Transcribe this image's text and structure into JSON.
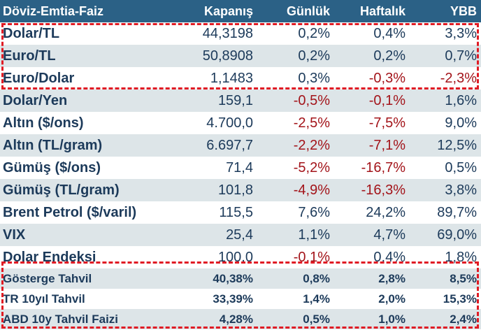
{
  "header": {
    "name": "Döviz-Emtia-Faiz",
    "kapanis": "Kapanış",
    "gunluk": "Günlük",
    "haftalik": "Haftalık",
    "ybb": "YBB"
  },
  "rows": [
    {
      "name": "Dolar/TL",
      "kapanis": "44,3198",
      "gunluk": "0,2%",
      "haftalik": "0,4%",
      "ybb": "3,3%"
    },
    {
      "name": "Euro/TL",
      "kapanis": "50,8908",
      "gunluk": "0,2%",
      "haftalik": "0,2%",
      "ybb": "0,7%"
    },
    {
      "name": "Euro/Dolar",
      "kapanis": "1,1483",
      "gunluk": "0,3%",
      "haftalik": "-0,3%",
      "ybb": "-2,3%"
    },
    {
      "name": "Dolar/Yen",
      "kapanis": "159,1",
      "gunluk": "-0,5%",
      "haftalik": "-0,1%",
      "ybb": "1,6%"
    },
    {
      "name": "Altın ($/ons)",
      "kapanis": "4.700,0",
      "gunluk": "-2,5%",
      "haftalik": "-7,5%",
      "ybb": "9,0%"
    },
    {
      "name": "Altın (TL/gram)",
      "kapanis": "6.697,7",
      "gunluk": "-2,2%",
      "haftalik": "-7,1%",
      "ybb": "12,5%"
    },
    {
      "name": "Gümüş ($/ons)",
      "kapanis": "71,4",
      "gunluk": "-5,2%",
      "haftalik": "-16,7%",
      "ybb": "0,5%"
    },
    {
      "name": "Gümüş (TL/gram)",
      "kapanis": "101,8",
      "gunluk": "-4,9%",
      "haftalik": "-16,3%",
      "ybb": "3,8%"
    },
    {
      "name": "Brent Petrol ($/varil)",
      "kapanis": "115,5",
      "gunluk": "7,6%",
      "haftalik": "24,2%",
      "ybb": "89,7%"
    },
    {
      "name": "VIX",
      "kapanis": "25,4",
      "gunluk": "1,1%",
      "haftalik": "4,7%",
      "ybb": "69,0%"
    },
    {
      "name": "Dolar Endeksi",
      "kapanis": "100,0",
      "gunluk": "-0,1%",
      "haftalik": "0,4%",
      "ybb": "1,8%"
    }
  ],
  "bonds": [
    {
      "name": "Gösterge Tahvil",
      "kapanis": "40,38%",
      "gunluk": "0,8%",
      "haftalik": "2,8%",
      "ybb": "8,5%"
    },
    {
      "name": "TR 10yıl Tahvil",
      "kapanis": "33,39%",
      "gunluk": "1,4%",
      "haftalik": "2,0%",
      "ybb": "15,3%"
    },
    {
      "name": "ABD 10y Tahvil Faizi",
      "kapanis": "4,28%",
      "gunluk": "0,5%",
      "haftalik": "1,0%",
      "ybb": "2,4%"
    }
  ],
  "colors": {
    "header_bg": "#2b6186",
    "row_alt_bg": "#dde5e8",
    "text": "#1c3a5a",
    "negative": "#a3141a",
    "highlight_dash": "#e01b24"
  }
}
